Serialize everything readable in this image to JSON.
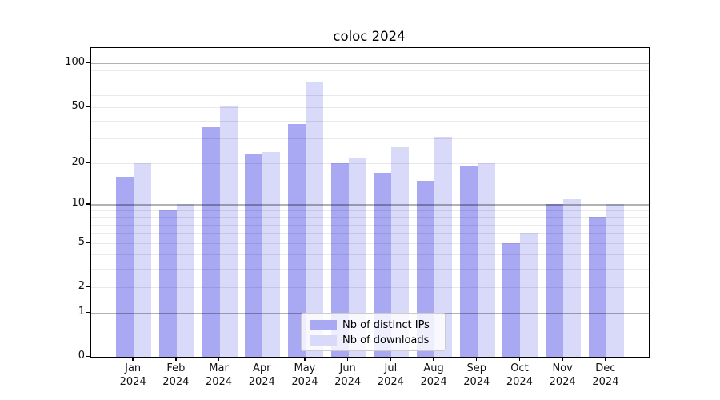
{
  "title": "coloc 2024",
  "chart_data": {
    "type": "bar",
    "title": "coloc 2024",
    "categories": [
      "Jan",
      "Feb",
      "Mar",
      "Apr",
      "May",
      "Jun",
      "Jul",
      "Aug",
      "Sep",
      "Oct",
      "Nov",
      "Dec"
    ],
    "category_year": "2024",
    "series": [
      {
        "name": "Nb of distinct IPs",
        "color": "#a8a8f3",
        "values": [
          16,
          9,
          36,
          23,
          38,
          20,
          17,
          15,
          19,
          5,
          10,
          8
        ]
      },
      {
        "name": "Nb of downloads",
        "color": "#d9d9f9",
        "values": [
          20,
          10,
          51,
          24,
          75,
          22,
          26,
          31,
          20,
          6,
          11,
          10
        ]
      }
    ],
    "xlabel": "",
    "ylabel": "",
    "y_axis": {
      "scale": "log1p",
      "tick_labels": [
        0,
        1,
        2,
        5,
        10,
        20,
        50,
        100
      ],
      "major_gridlines": [
        1,
        10,
        100
      ],
      "minor_gridlines": [
        2,
        3,
        4,
        5,
        6,
        7,
        8,
        9,
        20,
        30,
        40,
        50,
        60,
        70,
        80,
        90
      ],
      "ylim": [
        0,
        127
      ],
      "grid": true
    },
    "legend": {
      "location": "lower center",
      "entries": [
        "Nb of distinct IPs",
        "Nb of downloads"
      ]
    }
  }
}
